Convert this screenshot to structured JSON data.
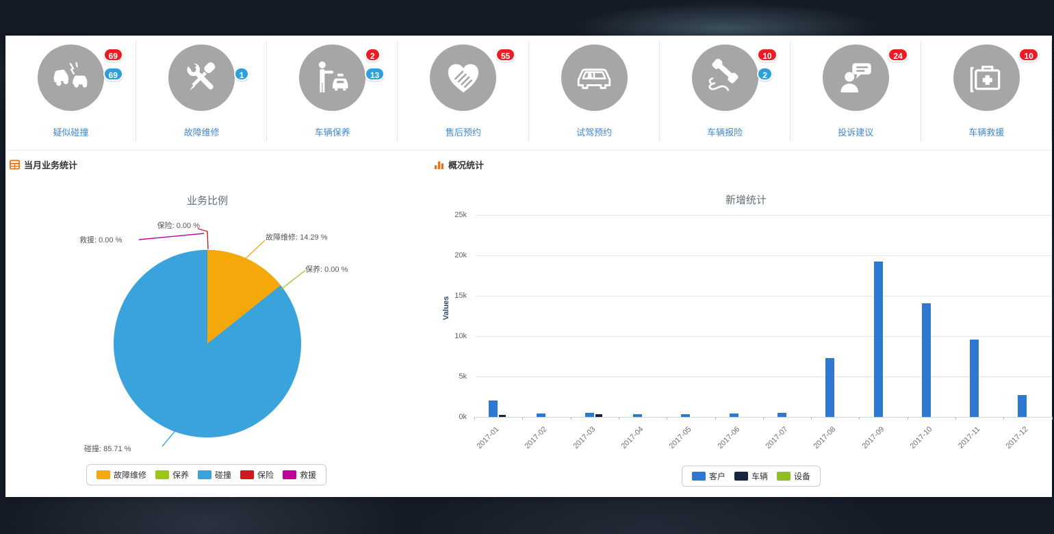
{
  "services": [
    {
      "label": "疑似碰撞",
      "icon": "car-collision-icon",
      "badges": [
        {
          "value": "69",
          "type": "alert",
          "color": "#ed1c24"
        },
        {
          "value": "69",
          "type": "info",
          "color": "#2d9fd9"
        }
      ]
    },
    {
      "label": "故障维修",
      "icon": "repair-tools-icon",
      "badges": [
        {
          "value": "1",
          "type": "info",
          "color": "#2d9fd9"
        }
      ]
    },
    {
      "label": "车辆保养",
      "icon": "person-car-icon",
      "badges": [
        {
          "value": "2",
          "type": "alert",
          "color": "#ed1c24"
        },
        {
          "value": "13",
          "type": "info",
          "color": "#2d9fd9"
        }
      ]
    },
    {
      "label": "售后预约",
      "icon": "handshake-heart-icon",
      "badges": [
        {
          "value": "55",
          "type": "alert",
          "color": "#ed1c24"
        }
      ]
    },
    {
      "label": "试驾预约",
      "icon": "car-front-icon",
      "badges": []
    },
    {
      "label": "车辆报险",
      "icon": "phone-icon",
      "badges": [
        {
          "value": "10",
          "type": "alert",
          "color": "#ed1c24"
        },
        {
          "value": "2",
          "type": "info",
          "color": "#2d9fd9"
        }
      ]
    },
    {
      "label": "投诉建议",
      "icon": "person-chat-icon",
      "badges": [
        {
          "value": "24",
          "type": "alert",
          "color": "#ed1c24"
        }
      ]
    },
    {
      "label": "车辆救援",
      "icon": "first-aid-icon",
      "badges": [
        {
          "value": "10",
          "type": "alert",
          "color": "#ed1c24"
        }
      ]
    }
  ],
  "sections": {
    "left_title": "当月业务统计",
    "right_title": "概况统计"
  },
  "chart_data": [
    {
      "type": "pie",
      "title": "业务比例",
      "series": [
        {
          "name": "故障维修",
          "value_pct": 14.29,
          "color": "#f5a80a"
        },
        {
          "name": "保养",
          "value_pct": 0.0,
          "color": "#9dc61b"
        },
        {
          "name": "碰撞",
          "value_pct": 85.71,
          "color": "#3ba3dc"
        },
        {
          "name": "保险",
          "value_pct": 0.0,
          "color": "#cd1a1f"
        },
        {
          "name": "救援",
          "value_pct": 0.0,
          "color": "#c0009b"
        }
      ],
      "callouts": [
        {
          "text": "保险: 0.00 %"
        },
        {
          "text": "救援: 0.00 %"
        },
        {
          "text": "故障维修: 14.29 %"
        },
        {
          "text": "保养: 0.00 %"
        },
        {
          "text": "碰撞: 85.71 %"
        }
      ],
      "legend": [
        "故障维修",
        "保养",
        "碰撞",
        "保险",
        "救援"
      ],
      "legend_position": "bottom"
    },
    {
      "type": "bar",
      "title": "新增统计",
      "xlabel": "",
      "ylabel": "Values",
      "ylim": [
        0,
        25000
      ],
      "yticks": [
        "0k",
        "5k",
        "10k",
        "15k",
        "20k",
        "25k"
      ],
      "grid": true,
      "legend_position": "bottom",
      "categories": [
        "2017-01",
        "2017-02",
        "2017-03",
        "2017-04",
        "2017-05",
        "2017-06",
        "2017-07",
        "2017-08",
        "2017-09",
        "2017-10",
        "2017-11",
        "2017-12"
      ],
      "series": [
        {
          "name": "客户",
          "color": "#2e78d2",
          "values": [
            2000,
            400,
            500,
            350,
            350,
            450,
            500,
            7300,
            19200,
            14100,
            9600,
            2700
          ]
        },
        {
          "name": "车辆",
          "color": "#18253c",
          "values": [
            250,
            0,
            300,
            0,
            0,
            0,
            0,
            0,
            0,
            0,
            0,
            0
          ]
        },
        {
          "name": "设备",
          "color": "#8fbe26",
          "values": [
            0,
            0,
            0,
            0,
            0,
            0,
            0,
            0,
            0,
            0,
            0,
            0
          ]
        }
      ]
    }
  ]
}
